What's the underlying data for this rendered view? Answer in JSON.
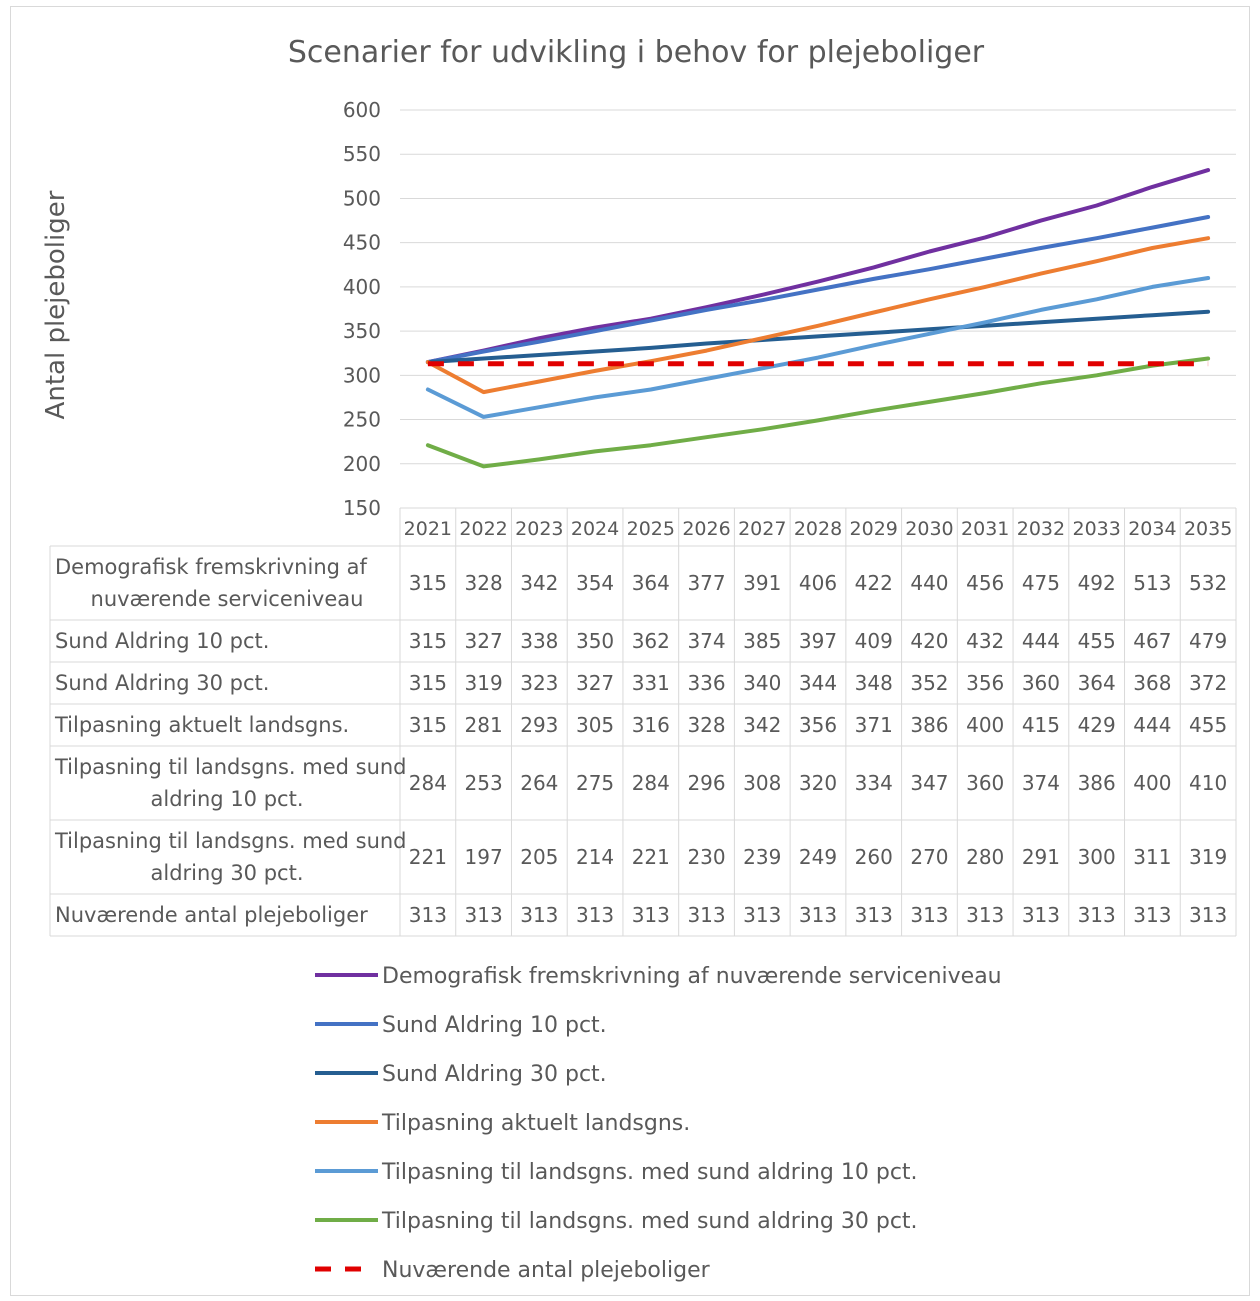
{
  "chart_data": {
    "type": "line",
    "title": "Scenarier for udvikling i behov for plejeboliger",
    "ylabel": "Antal plejeboliger",
    "xlabel": "",
    "ylim": [
      150,
      600
    ],
    "yticks": [
      150,
      200,
      250,
      300,
      350,
      400,
      450,
      500,
      550,
      600
    ],
    "categories": [
      "2021",
      "2022",
      "2023",
      "2024",
      "2025",
      "2026",
      "2027",
      "2028",
      "2029",
      "2030",
      "2031",
      "2032",
      "2033",
      "2034",
      "2035"
    ],
    "grid": true,
    "legend_position": "bottom",
    "data_table": true,
    "series": [
      {
        "name": "Demografisk fremskrivning af nuværende serviceniveau",
        "table_label": [
          "Demografisk fremskrivning af",
          "nuværende serviceniveau"
        ],
        "color": "#7030a0",
        "dashed": false,
        "values": [
          315,
          328,
          342,
          354,
          364,
          377,
          391,
          406,
          422,
          440,
          456,
          475,
          492,
          513,
          532
        ]
      },
      {
        "name": "Sund Aldring 10 pct.",
        "table_label": [
          "Sund Aldring 10 pct."
        ],
        "color": "#4472c4",
        "dashed": false,
        "values": [
          315,
          327,
          338,
          350,
          362,
          374,
          385,
          397,
          409,
          420,
          432,
          444,
          455,
          467,
          479
        ]
      },
      {
        "name": "Sund Aldring 30 pct.",
        "table_label": [
          "Sund Aldring 30 pct."
        ],
        "color": "#255e91",
        "dashed": false,
        "values": [
          315,
          319,
          323,
          327,
          331,
          336,
          340,
          344,
          348,
          352,
          356,
          360,
          364,
          368,
          372
        ]
      },
      {
        "name": "Tilpasning aktuelt landsgns.",
        "table_label": [
          "Tilpasning aktuelt landsgns."
        ],
        "color": "#ed7d31",
        "dashed": false,
        "values": [
          315,
          281,
          293,
          305,
          316,
          328,
          342,
          356,
          371,
          386,
          400,
          415,
          429,
          444,
          455
        ]
      },
      {
        "name": "Tilpasning til landsgns. med sund aldring 10 pct.",
        "table_label": [
          "Tilpasning til landsgns. med sund",
          "aldring 10 pct."
        ],
        "color": "#5b9bd5",
        "dashed": false,
        "values": [
          284,
          253,
          264,
          275,
          284,
          296,
          308,
          320,
          334,
          347,
          360,
          374,
          386,
          400,
          410
        ]
      },
      {
        "name": "Tilpasning til landsgns. med sund aldring 30 pct.",
        "table_label": [
          "Tilpasning til landsgns. med sund",
          "aldring 30 pct."
        ],
        "color": "#70ad47",
        "dashed": false,
        "values": [
          221,
          197,
          205,
          214,
          221,
          230,
          239,
          249,
          260,
          270,
          280,
          291,
          300,
          311,
          319
        ]
      },
      {
        "name": "Nuværende antal plejeboliger",
        "table_label": [
          "Nuværende antal plejeboliger"
        ],
        "color": "#e00000",
        "dashed": true,
        "values": [
          313,
          313,
          313,
          313,
          313,
          313,
          313,
          313,
          313,
          313,
          313,
          313,
          313,
          313,
          313
        ]
      }
    ]
  }
}
